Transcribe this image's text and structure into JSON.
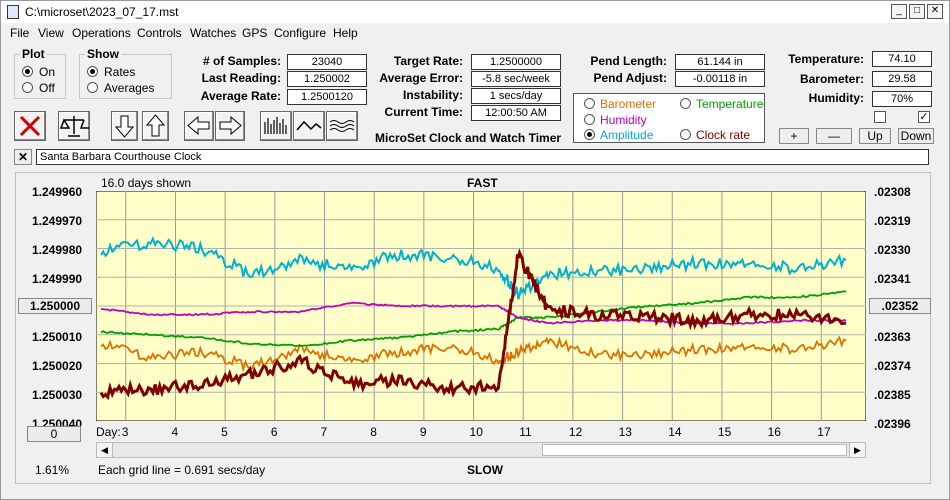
{
  "window": {
    "title": "C:\\microset\\2023_07_17.mst"
  },
  "menu": [
    "File",
    "View",
    "Operations",
    "Controls",
    "Watches",
    "GPS",
    "Configure",
    "Help"
  ],
  "plot_group": {
    "title": "Plot",
    "on": "On",
    "off": "Off"
  },
  "show_group": {
    "title": "Show",
    "rates": "Rates",
    "averages": "Averages"
  },
  "stats_left": [
    {
      "label": "# of Samples:",
      "value": "23040"
    },
    {
      "label": "Last Reading:",
      "value": "1.250002"
    },
    {
      "label": "Average Rate:",
      "value": "1.2500120"
    }
  ],
  "stats_mid": [
    {
      "label": "Target Rate:",
      "value": "1.2500000"
    },
    {
      "label": "Average Error:",
      "value": "-5.8 sec/week"
    },
    {
      "label": "Instability:",
      "value": "1 secs/day"
    },
    {
      "label": "Current Time:",
      "value": "12:00:50 AM"
    }
  ],
  "stats_right": [
    {
      "label": "Pend Length:",
      "value": "61.144 in"
    },
    {
      "label": "Pend Adjust:",
      "value": "-0.00118 in"
    }
  ],
  "env": [
    {
      "label": "Temperature:",
      "value": "74.10"
    },
    {
      "label": "Barometer:",
      "value": "29.58"
    },
    {
      "label": "Humidity:",
      "value": "70%"
    }
  ],
  "app_caption": "MicroSet Clock and Watch Timer",
  "series_options": [
    {
      "label": "Barometer",
      "color": "#e07000",
      "selected": false
    },
    {
      "label": "Temperature",
      "color": "#00a000",
      "selected": false
    },
    {
      "label": "Humidity",
      "color": "#c000c0",
      "selected": false
    },
    {
      "label": "Amplitude",
      "color": "#00b0d0",
      "selected": true
    },
    {
      "label": "Clock rate",
      "color": "#800000",
      "selected": false
    }
  ],
  "env_buttons": [
    "+",
    "—",
    "Up",
    "Down"
  ],
  "clock_name": "Santa Barbara Courthouse Clock",
  "chart": {
    "days_shown": "16.0 days shown",
    "top_label": "FAST",
    "bottom_label": "SLOW",
    "grid_note": "Each grid line = 0.691 secs/day",
    "left_ticks": [
      "1.249960",
      "1.249970",
      "1.249980",
      "1.249990",
      "1.250000",
      "1.250010",
      "1.250020",
      "1.250030",
      "1.250040"
    ],
    "right_ticks": [
      ".02308",
      ".02319",
      ".02330",
      ".02341",
      ".02352",
      ".02363",
      ".02374",
      ".02385",
      ".02396"
    ],
    "day_label": "Day:",
    "days": [
      "3",
      "4",
      "5",
      "6",
      "7",
      "8",
      "9",
      "10",
      "11",
      "12",
      "13",
      "14",
      "15",
      "16",
      "17"
    ],
    "left_button": "1.250000",
    "right_button": ".02352",
    "zero_button": "0",
    "percent": "1.61%",
    "plot_bg": "#ffffc8"
  },
  "chart_data": {
    "type": "line",
    "x": [
      2.5,
      3.5,
      4.5,
      5.5,
      6.5,
      7.5,
      8.5,
      9.5,
      10.5,
      10.9,
      11.5,
      12.5,
      13.5,
      14.5,
      15.5,
      16.5,
      17.5
    ],
    "series": [
      {
        "name": "Clock rate",
        "values": [
          1.25003,
          1.250029,
          1.250027,
          1.250024,
          1.250019,
          1.250027,
          1.250026,
          1.250029,
          1.250028,
          1.249982,
          1.250001,
          1.250003,
          1.250004,
          1.250005,
          1.250003,
          1.250003,
          1.250006
        ]
      },
      {
        "name": "Amplitude",
        "values": [
          1.249981,
          1.249978,
          1.24998,
          1.249989,
          1.249984,
          1.249987,
          1.249982,
          1.249983,
          1.249987,
          1.249996,
          1.249989,
          1.249988,
          1.249987,
          1.249985,
          1.249985,
          1.249987,
          1.249984
        ]
      },
      {
        "name": "Temperature",
        "values": [
          1.250009,
          1.25001,
          1.250011,
          1.250013,
          1.250014,
          1.250012,
          1.250011,
          1.250009,
          1.250008,
          1.250004,
          1.250004,
          1.250002,
          1.25,
          1.249999,
          1.249997,
          1.249997,
          1.249995
        ]
      },
      {
        "name": "Humidity",
        "values": [
          1.250001,
          1.250003,
          1.250003,
          1.250002,
          1.250002,
          1.249999,
          1.25,
          1.25,
          1.25,
          1.250004,
          1.250006,
          1.250005,
          1.250005,
          1.250006,
          1.250006,
          1.250005,
          1.250005
        ]
      },
      {
        "name": "Barometer",
        "values": [
          1.250013,
          1.250018,
          1.250016,
          1.250021,
          1.250015,
          1.250019,
          1.250016,
          1.250014,
          1.250019,
          1.250016,
          1.250012,
          1.250017,
          1.250017,
          1.250015,
          1.250014,
          1.250015,
          1.250012
        ]
      }
    ],
    "xlim": [
      2.4,
      17.9
    ],
    "ylim": [
      1.24996,
      1.25004
    ],
    "ylabel": "",
    "xlabel": "Day:"
  }
}
